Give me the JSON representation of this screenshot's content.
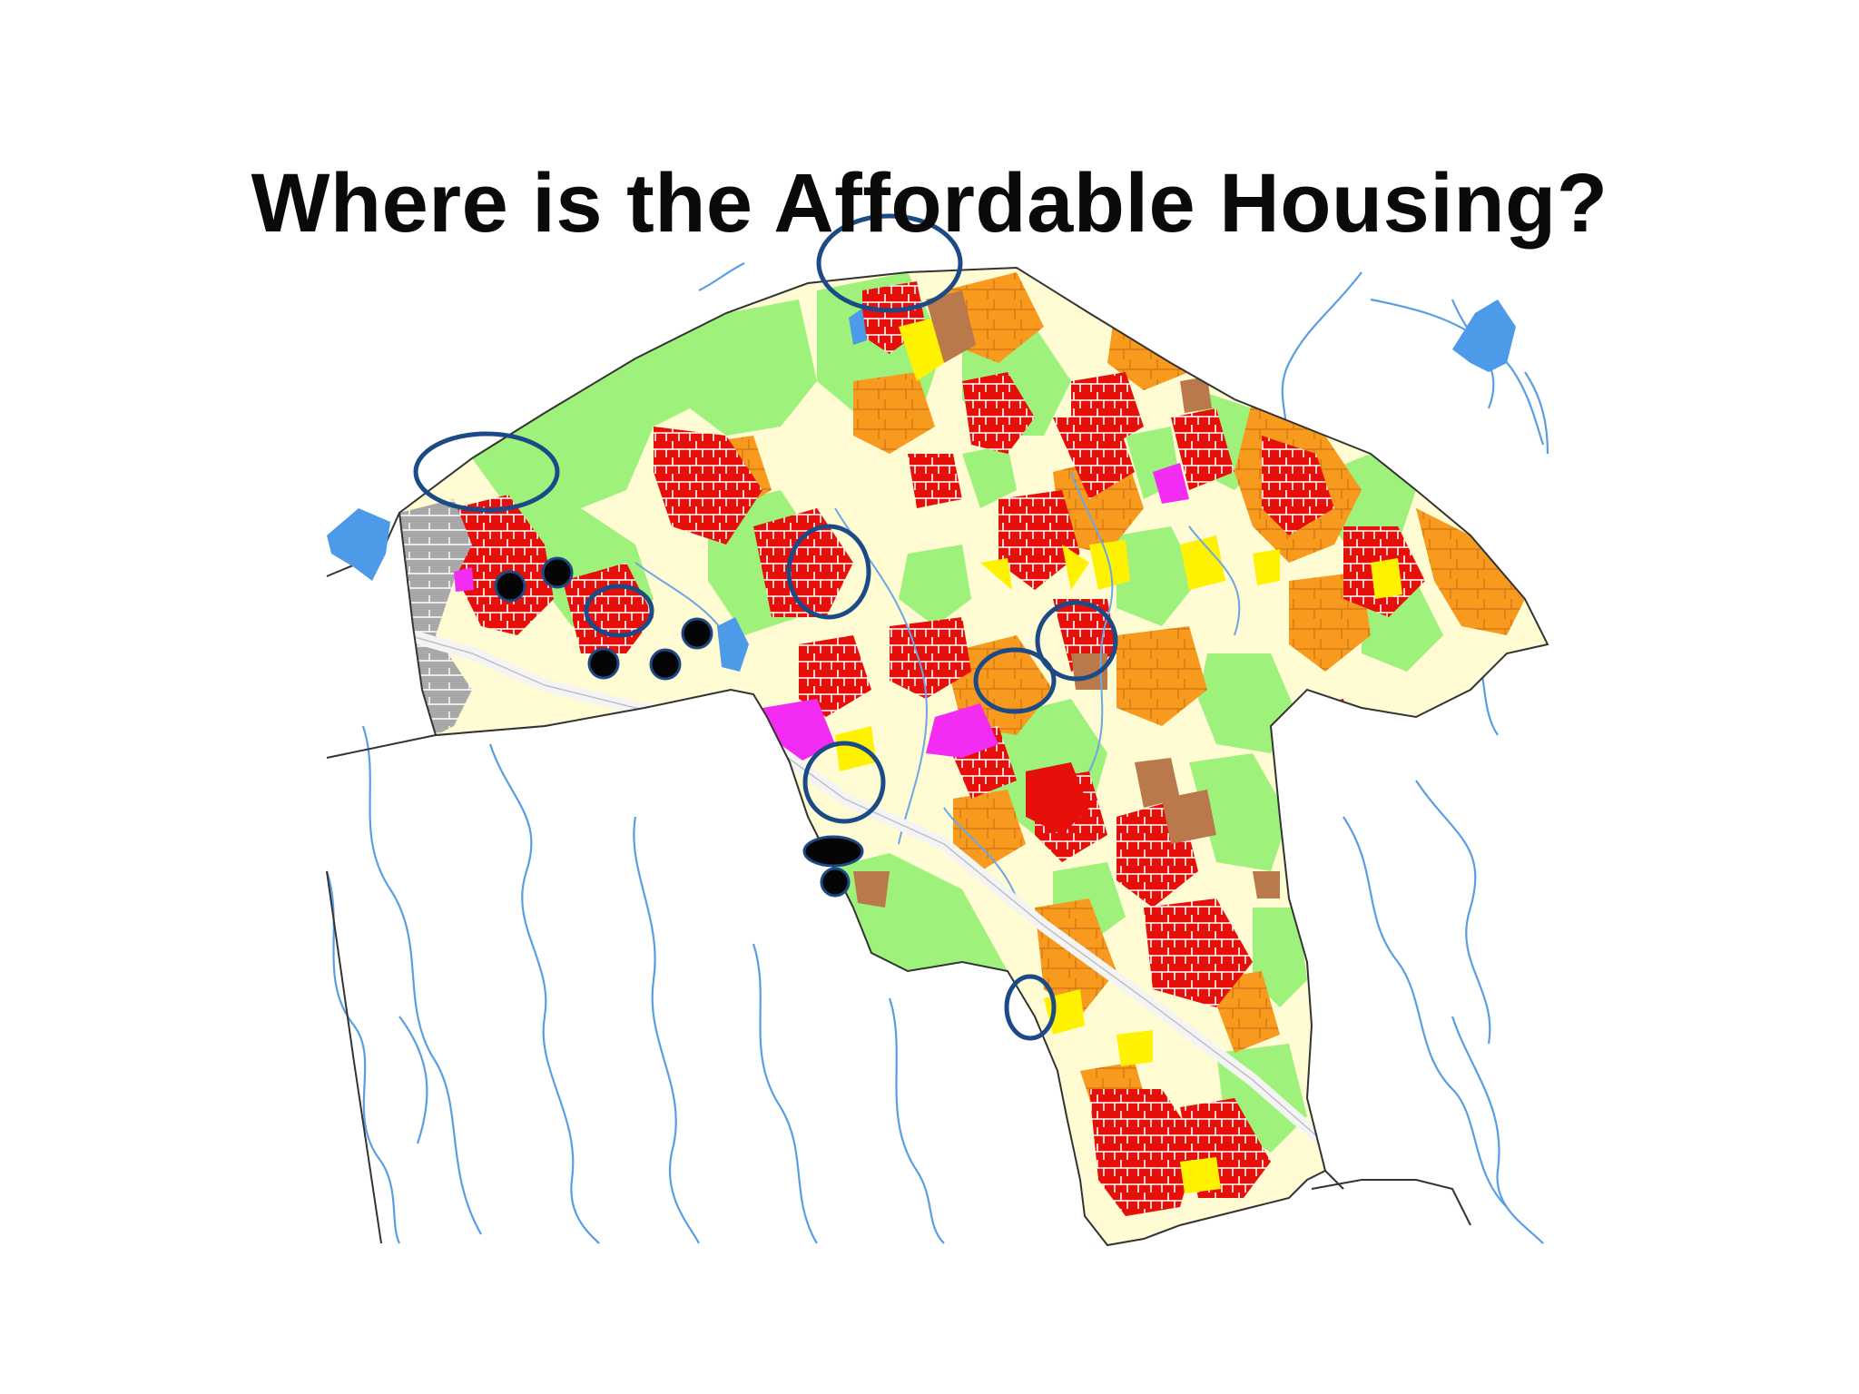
{
  "slide": {
    "title": "Where is the Affordable Housing?"
  },
  "map": {
    "colors": {
      "red": "#e60f0a",
      "orange": "#f79a1e",
      "yellow": "#fff200",
      "cream": "#fffbd2",
      "green": "#9ef27c",
      "brown": "#b9794a",
      "magenta": "#f22cf2",
      "gray": "#a8a8a8",
      "water": "#4d9be8",
      "highway": "#f4f4f4",
      "circle": "#1c4a86",
      "marker": "#050505"
    }
  }
}
